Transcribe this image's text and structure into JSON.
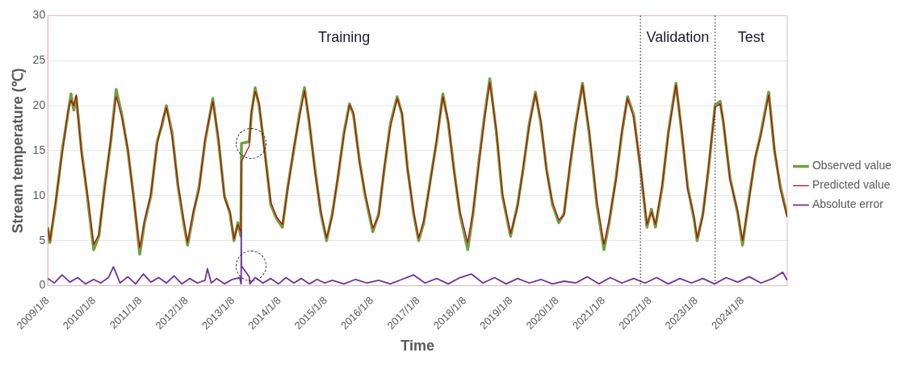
{
  "chart_data": {
    "type": "line",
    "xlabel": "Time",
    "ylabel": "Stream temperature (℃)",
    "xlim": [
      "2009-01-08",
      "2024-12-25"
    ],
    "xticks": [
      {
        "value": "2009-01-08",
        "label": "2009/1/8"
      },
      {
        "value": "2010-01-08",
        "label": "2010/1/8"
      },
      {
        "value": "2011-01-08",
        "label": "2011/1/8"
      },
      {
        "value": "2012-01-08",
        "label": "2012/1/8"
      },
      {
        "value": "2013-01-08",
        "label": "2013/1/8"
      },
      {
        "value": "2014-01-08",
        "label": "2014/1/8"
      },
      {
        "value": "2015-01-08",
        "label": "2015/1/8"
      },
      {
        "value": "2016-01-08",
        "label": "2016/1/8"
      },
      {
        "value": "2017-01-08",
        "label": "2017/1/8"
      },
      {
        "value": "2018-01-08",
        "label": "2018/1/8"
      },
      {
        "value": "2019-01-08",
        "label": "2019/1/8"
      },
      {
        "value": "2020-01-08",
        "label": "2020/1/8"
      },
      {
        "value": "2021-01-08",
        "label": "2021/1/8"
      },
      {
        "value": "2022-01-08",
        "label": "2022/1/8"
      },
      {
        "value": "2023-01-08",
        "label": "2023/1/8"
      },
      {
        "value": "2024-01-08",
        "label": "2024/1/8"
      }
    ],
    "ylim": [
      0,
      30
    ],
    "yticks": [
      0,
      5,
      10,
      15,
      20,
      25,
      30
    ],
    "grid": "y",
    "legend": "right",
    "marker": "none",
    "line_style": "solid",
    "x": [
      "2009-01-08",
      "2009-01-25",
      "2009-03-10",
      "2009-05-01",
      "2009-06-15",
      "2009-07-10",
      "2009-08-01",
      "2009-08-20",
      "2009-10-01",
      "2009-11-15",
      "2010-01-05",
      "2010-02-15",
      "2010-04-01",
      "2010-05-20",
      "2010-07-01",
      "2010-08-15",
      "2010-10-01",
      "2010-11-15",
      "2011-01-03",
      "2011-02-10",
      "2011-04-01",
      "2011-05-20",
      "2011-07-01",
      "2011-08-01",
      "2011-09-15",
      "2011-11-01",
      "2011-12-15",
      "2012-01-15",
      "2012-03-01",
      "2012-04-15",
      "2012-06-01",
      "2012-08-01",
      "2012-09-15",
      "2012-11-01",
      "2012-12-15",
      "2013-01-15",
      "2013-02-15",
      "2013-03-10",
      "2013-03-15",
      "2013-05-15",
      "2013-06-01",
      "2013-07-01",
      "2013-08-01",
      "2013-09-15",
      "2013-11-01",
      "2013-12-15",
      "2014-02-01",
      "2014-03-15",
      "2014-05-01",
      "2014-06-15",
      "2014-07-25",
      "2014-09-01",
      "2014-10-15",
      "2014-12-01",
      "2015-01-15",
      "2015-03-01",
      "2015-04-15",
      "2015-06-01",
      "2015-07-15",
      "2015-08-15",
      "2015-10-01",
      "2015-11-15",
      "2016-01-15",
      "2016-03-01",
      "2016-04-15",
      "2016-06-01",
      "2016-07-25",
      "2016-09-01",
      "2016-10-15",
      "2016-12-01",
      "2017-01-10",
      "2017-02-20",
      "2017-04-15",
      "2017-06-01",
      "2017-07-20",
      "2017-09-01",
      "2017-10-15",
      "2017-12-01",
      "2018-02-01",
      "2018-03-15",
      "2018-05-01",
      "2018-06-15",
      "2018-07-25",
      "2018-09-15",
      "2018-11-01",
      "2019-01-05",
      "2019-03-01",
      "2019-04-15",
      "2019-06-01",
      "2019-07-20",
      "2019-09-01",
      "2019-10-15",
      "2019-12-01",
      "2020-01-20",
      "2020-03-01",
      "2020-04-15",
      "2020-06-01",
      "2020-07-25",
      "2020-09-15",
      "2020-11-15",
      "2021-01-10",
      "2021-02-20",
      "2021-04-15",
      "2021-06-01",
      "2021-07-15",
      "2021-09-01",
      "2021-10-25",
      "2021-12-15",
      "2022-01-20",
      "2022-02-20",
      "2022-04-15",
      "2022-06-01",
      "2022-08-01",
      "2022-09-15",
      "2022-11-01",
      "2022-12-20",
      "2023-01-15",
      "2023-03-01",
      "2023-04-15",
      "2023-06-05",
      "2023-07-15",
      "2023-08-10",
      "2023-10-01",
      "2023-12-01",
      "2024-01-08",
      "2024-03-01",
      "2024-04-15",
      "2024-06-01",
      "2024-08-01",
      "2024-09-15",
      "2024-11-01",
      "2024-12-25"
    ],
    "series": [
      {
        "name": "Observed value",
        "color": "#70a040",
        "values": [
          6.5,
          4.8,
          9,
          15,
          19,
          21.3,
          19.5,
          21,
          15,
          10,
          4,
          5.5,
          11,
          16,
          21.8,
          19,
          15,
          10,
          3.5,
          7,
          10,
          16,
          18,
          20,
          17,
          11,
          7,
          4.5,
          8,
          11,
          16,
          20.8,
          16,
          10,
          8,
          5,
          7,
          5.5,
          15.8,
          16,
          19,
          22,
          20,
          15,
          9,
          7.5,
          6.5,
          11,
          15,
          19,
          22,
          18,
          13,
          8,
          5,
          8,
          12,
          17,
          20.2,
          19,
          14,
          10,
          6,
          8,
          13,
          18,
          21,
          19,
          13,
          8,
          5,
          7,
          12,
          16,
          21.3,
          18,
          13,
          8,
          4,
          8,
          14,
          19,
          23,
          17,
          10,
          5.5,
          9,
          13,
          18,
          21.5,
          18,
          13,
          9,
          7,
          8,
          13,
          18,
          22.5,
          17,
          9,
          4,
          7,
          12,
          17,
          21,
          19,
          13,
          6.5,
          8.5,
          6.5,
          11,
          17,
          22.5,
          17,
          11,
          7.5,
          5,
          8,
          13,
          20,
          20.5,
          18,
          12,
          8,
          4.5,
          10,
          14,
          17,
          21.5,
          15,
          11,
          7.8
        ]
      },
      {
        "name": "Predicted value",
        "color": "#c00000",
        "values": [
          6.3,
          5,
          9.3,
          14.6,
          19.3,
          20.6,
          20,
          21.2,
          14.7,
          10.4,
          4.6,
          5.7,
          10.7,
          16.4,
          21,
          18.7,
          15.3,
          9.7,
          4.2,
          7.3,
          10.2,
          15.7,
          18.4,
          19.8,
          16.6,
          11.3,
          7.4,
          4.8,
          8.3,
          10.6,
          16.3,
          20.5,
          16.4,
          9.7,
          8.2,
          5.2,
          6.8,
          6,
          13.8,
          15.5,
          19.3,
          21.6,
          20.3,
          14.6,
          9.3,
          7.7,
          6.8,
          10.7,
          15.3,
          18.7,
          21.7,
          18.3,
          12.7,
          8.3,
          5.3,
          7.7,
          12.3,
          16.7,
          20.1,
          19.2,
          13.7,
          10.3,
          6.4,
          7.7,
          13.3,
          17.6,
          20.8,
          19.2,
          12.8,
          8.3,
          5.3,
          7.3,
          11.7,
          16.3,
          21,
          18.3,
          12.7,
          8.3,
          4.8,
          8.3,
          13.6,
          18.7,
          22.6,
          17.3,
          10.3,
          5.8,
          8.7,
          13.3,
          17.7,
          21.3,
          18.3,
          12.7,
          9.3,
          7.3,
          7.8,
          13.3,
          17.7,
          22.3,
          17.3,
          9.4,
          4.6,
          7.3,
          11.7,
          17.3,
          20.8,
          18.7,
          13.2,
          6.8,
          8.2,
          6.8,
          11.3,
          16.7,
          22.3,
          17.3,
          10.7,
          7.8,
          5.3,
          7.7,
          13.3,
          19.8,
          20.2,
          18.3,
          11.7,
          8.3,
          5,
          9.6,
          14.3,
          16.7,
          21.2,
          15.3,
          10.7,
          7.6
        ]
      },
      {
        "name": "Absolute error",
        "color": "#7030a0",
        "x": [
          "2009-01-08",
          "2009-03-01",
          "2009-05-01",
          "2009-07-01",
          "2009-09-01",
          "2009-11-01",
          "2010-01-05",
          "2010-03-01",
          "2010-05-01",
          "2010-06-10",
          "2010-08-01",
          "2010-10-01",
          "2010-12-01",
          "2011-02-01",
          "2011-04-01",
          "2011-06-01",
          "2011-08-01",
          "2011-10-01",
          "2011-12-01",
          "2012-02-01",
          "2012-04-01",
          "2012-06-01",
          "2012-06-20",
          "2012-07-20",
          "2012-09-01",
          "2012-11-01",
          "2013-01-01",
          "2013-03-01",
          "2013-03-12",
          "2013-03-13",
          "2013-03-15",
          "2013-05-15",
          "2013-05-20",
          "2013-07-01",
          "2013-09-01",
          "2013-11-01",
          "2014-01-01",
          "2014-03-01",
          "2014-05-01",
          "2014-07-01",
          "2014-09-01",
          "2014-11-01",
          "2015-01-01",
          "2015-03-01",
          "2015-06-01",
          "2015-09-01",
          "2015-12-01",
          "2016-03-01",
          "2016-06-01",
          "2016-09-01",
          "2016-12-01",
          "2017-03-01",
          "2017-06-01",
          "2017-09-01",
          "2017-12-01",
          "2018-03-01",
          "2018-06-01",
          "2018-09-01",
          "2018-12-01",
          "2019-03-01",
          "2019-06-01",
          "2019-09-01",
          "2019-12-01",
          "2020-03-01",
          "2020-06-01",
          "2020-09-01",
          "2020-12-01",
          "2021-03-01",
          "2021-06-01",
          "2021-09-01",
          "2021-12-01",
          "2022-03-01",
          "2022-06-01",
          "2022-09-01",
          "2022-12-01",
          "2023-03-01",
          "2023-06-01",
          "2023-09-01",
          "2023-12-01",
          "2024-03-01",
          "2024-06-01",
          "2024-09-01",
          "2024-11-20",
          "2024-12-25"
        ],
        "values": [
          0.8,
          0.3,
          1.2,
          0.4,
          0.9,
          0.2,
          0.7,
          0.3,
          0.9,
          2.1,
          0.3,
          1.0,
          0.2,
          1.3,
          0.4,
          0.9,
          0.3,
          1.1,
          0.2,
          0.8,
          0.3,
          0.6,
          1.9,
          0.3,
          0.8,
          0.2,
          0.7,
          0.9,
          0.2,
          6.2,
          2.2,
          1.0,
          0.2,
          0.9,
          0.3,
          0.8,
          0.2,
          0.9,
          0.3,
          0.8,
          0.2,
          0.7,
          0.3,
          0.6,
          0.2,
          0.7,
          0.3,
          0.6,
          0.2,
          0.7,
          1.2,
          0.3,
          0.8,
          0.2,
          0.9,
          1.3,
          0.3,
          0.9,
          0.2,
          0.8,
          0.3,
          0.7,
          0.2,
          0.5,
          0.3,
          1.0,
          0.2,
          0.9,
          0.3,
          0.8,
          0.3,
          0.9,
          0.2,
          0.8,
          0.3,
          0.8,
          0.2,
          0.9,
          0.4,
          1.0,
          0.3,
          0.8,
          1.5,
          0.6
        ]
      }
    ],
    "ref_lines": [
      {
        "axis": "x",
        "value": "2021-10-25",
        "color": "#404040",
        "line_style": "dotted"
      },
      {
        "axis": "x",
        "value": "2023-06-05",
        "color": "#404040",
        "line_style": "dotted"
      }
    ],
    "annotations": [
      "Training",
      "Validation",
      "Test"
    ]
  }
}
